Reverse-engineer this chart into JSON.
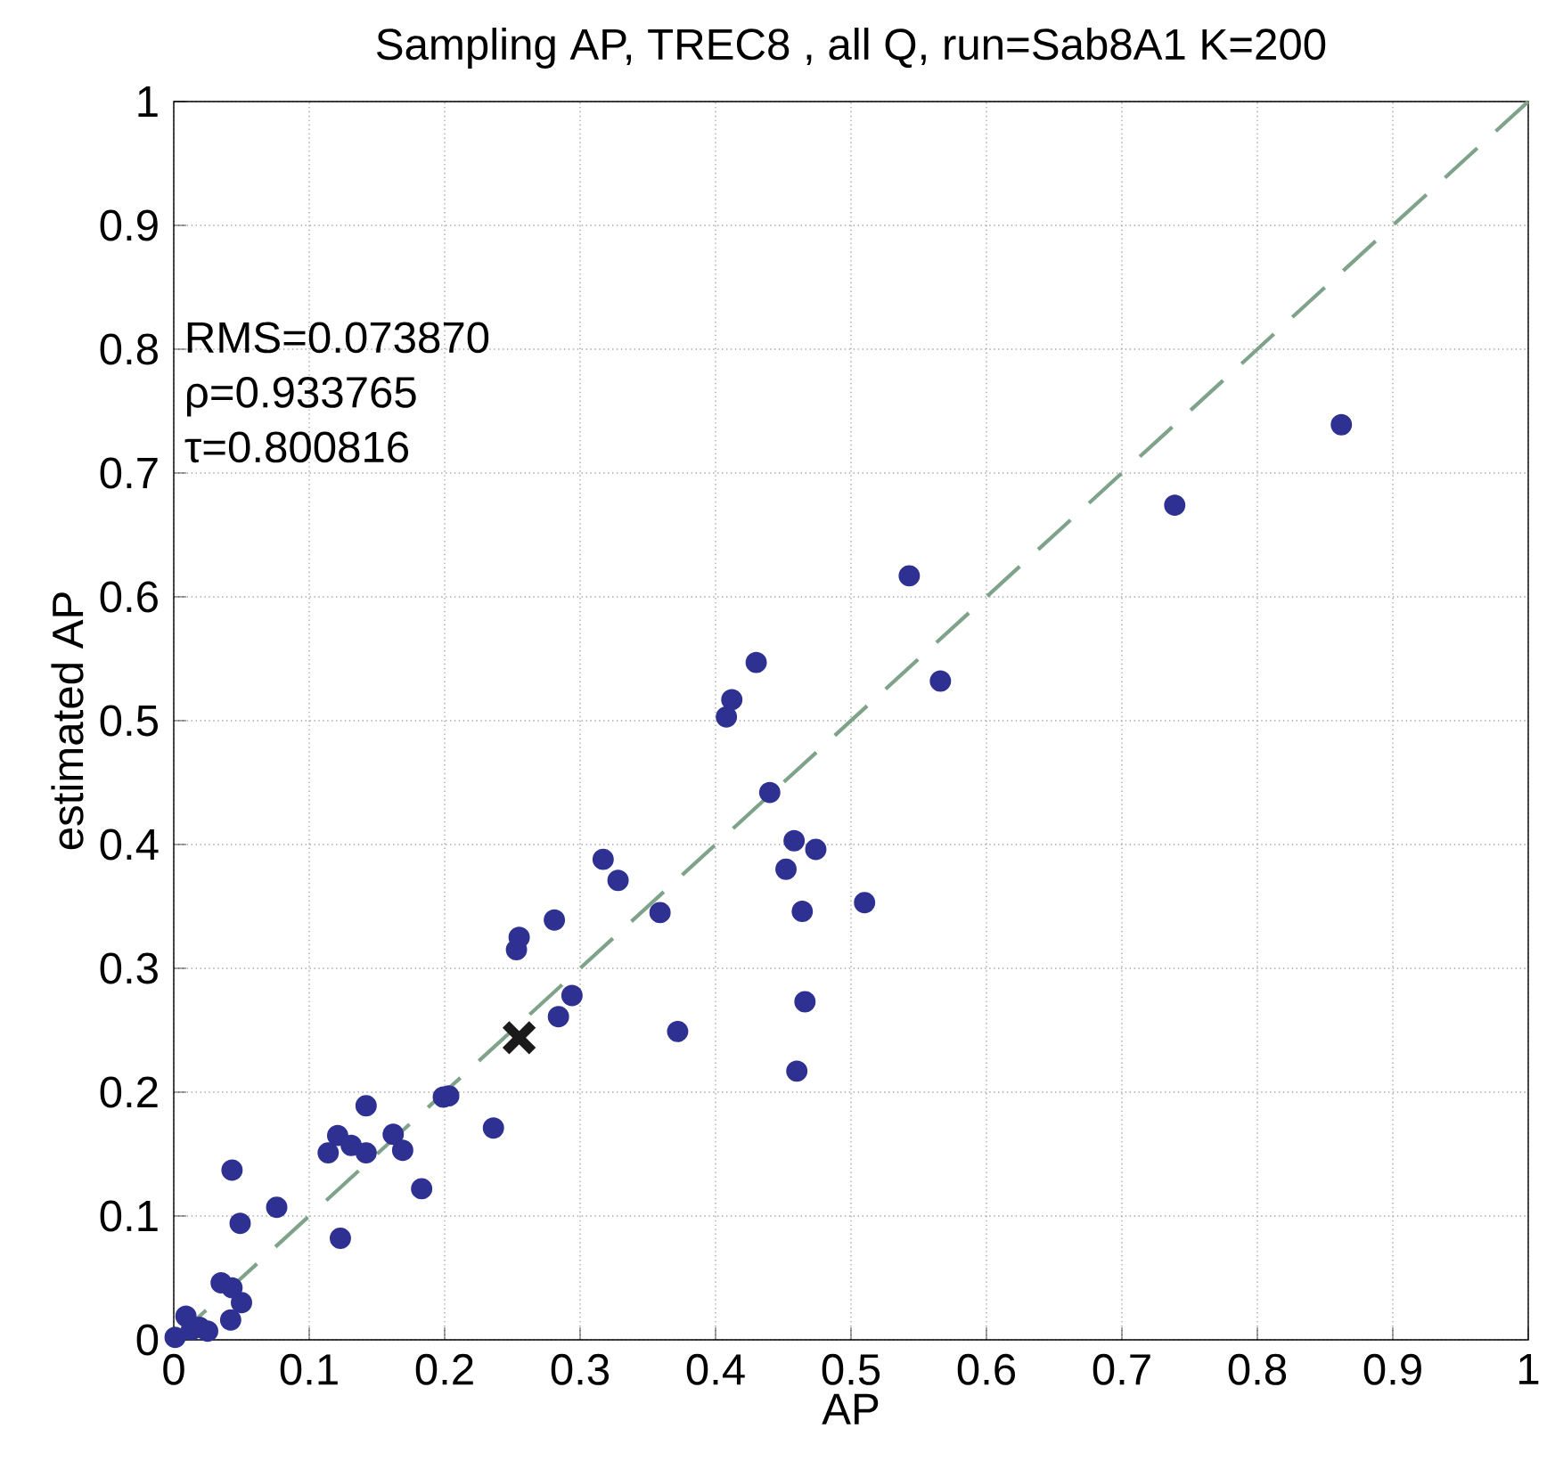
{
  "chart_data": {
    "type": "scatter",
    "title": "Sampling AP, TREC8 , all Q,  run=Sab8A1  K=200",
    "xlabel": "AP",
    "ylabel": "estimated AP",
    "xlim": [
      0,
      1
    ],
    "ylim": [
      0,
      1
    ],
    "xticks": [
      0,
      0.1,
      0.2,
      0.3,
      0.4,
      0.5,
      0.6,
      0.7,
      0.8,
      0.9,
      1
    ],
    "yticks": [
      0,
      0.1,
      0.2,
      0.3,
      0.4,
      0.5,
      0.6,
      0.7,
      0.8,
      0.9,
      1
    ],
    "grid": true,
    "annotations": [
      "RMS=0.073870",
      "ρ=0.933765",
      "τ=0.800816"
    ],
    "series": [
      {
        "type": "line",
        "color": "#7fa38a",
        "line_style": "dashed",
        "marker": "none",
        "x": [
          0,
          1
        ],
        "values": [
          0,
          1
        ]
      },
      {
        "type": "scatter",
        "color": "#2e3192",
        "marker": "circle",
        "x": [
          0.001,
          0.009,
          0.013,
          0.019,
          0.025,
          0.035,
          0.043,
          0.042,
          0.05,
          0.043,
          0.049,
          0.076,
          0.114,
          0.121,
          0.131,
          0.142,
          0.142,
          0.123,
          0.162,
          0.169,
          0.183,
          0.199,
          0.203,
          0.236,
          0.253,
          0.255,
          0.281,
          0.284,
          0.294,
          0.317,
          0.328,
          0.359,
          0.372,
          0.408,
          0.412,
          0.43,
          0.44,
          0.452,
          0.458,
          0.474,
          0.464,
          0.466,
          0.46,
          0.51,
          0.543,
          0.566,
          0.739,
          0.862
        ],
        "values": [
          0.002,
          0.019,
          0.008,
          0.01,
          0.007,
          0.046,
          0.042,
          0.016,
          0.03,
          0.137,
          0.094,
          0.107,
          0.151,
          0.165,
          0.157,
          0.151,
          0.189,
          0.082,
          0.166,
          0.153,
          0.122,
          0.196,
          0.197,
          0.171,
          0.315,
          0.325,
          0.339,
          0.261,
          0.278,
          0.388,
          0.371,
          0.345,
          0.249,
          0.503,
          0.517,
          0.547,
          0.442,
          0.38,
          0.403,
          0.396,
          0.346,
          0.273,
          0.217,
          0.353,
          0.617,
          0.532,
          0.674,
          0.739
        ]
      },
      {
        "type": "scatter",
        "color": "#1a1a1a",
        "marker": "cross",
        "x": [
          0.255
        ],
        "values": [
          0.244
        ]
      }
    ]
  }
}
